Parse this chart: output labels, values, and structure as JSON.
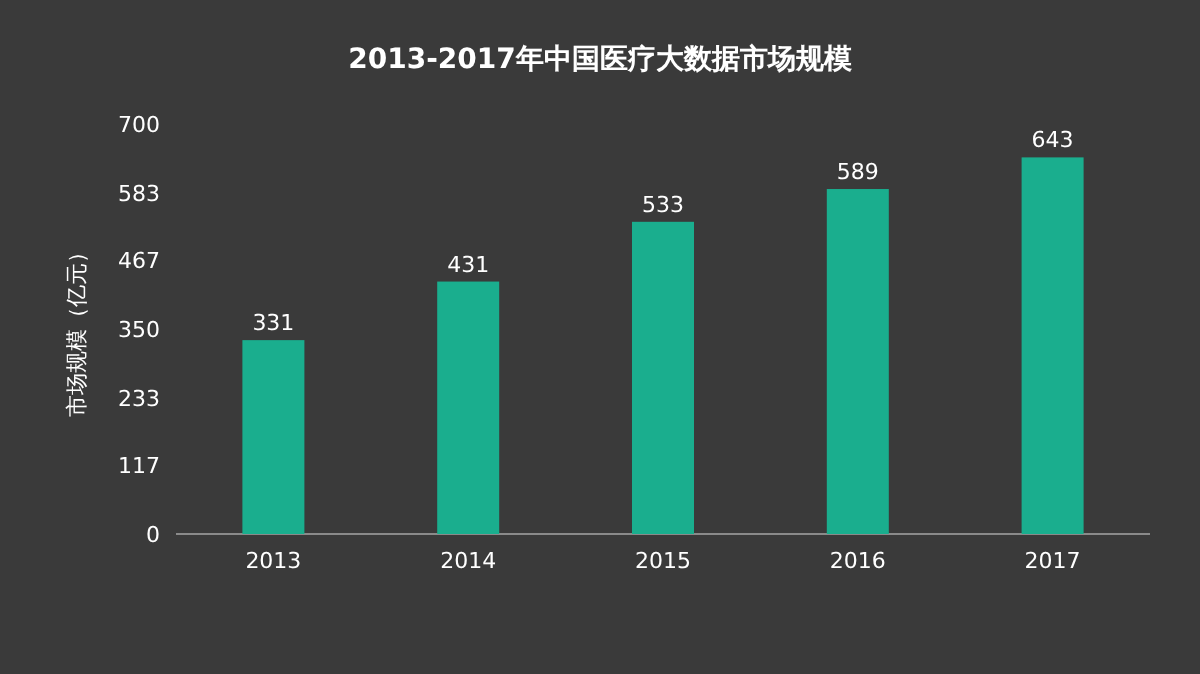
{
  "chart_data": {
    "type": "bar",
    "title": "2013-2017年中国医疗大数据市场规模",
    "ylabel": "市场规模（亿元）",
    "categories": [
      "2013",
      "2014",
      "2015",
      "2016",
      "2017"
    ],
    "values": [
      331,
      431,
      533,
      589,
      643
    ],
    "color": "#1aae8e",
    "ylim": [
      0,
      700
    ],
    "yticks": [
      0,
      117,
      233,
      350,
      467,
      583,
      700
    ],
    "data_labels": true
  }
}
